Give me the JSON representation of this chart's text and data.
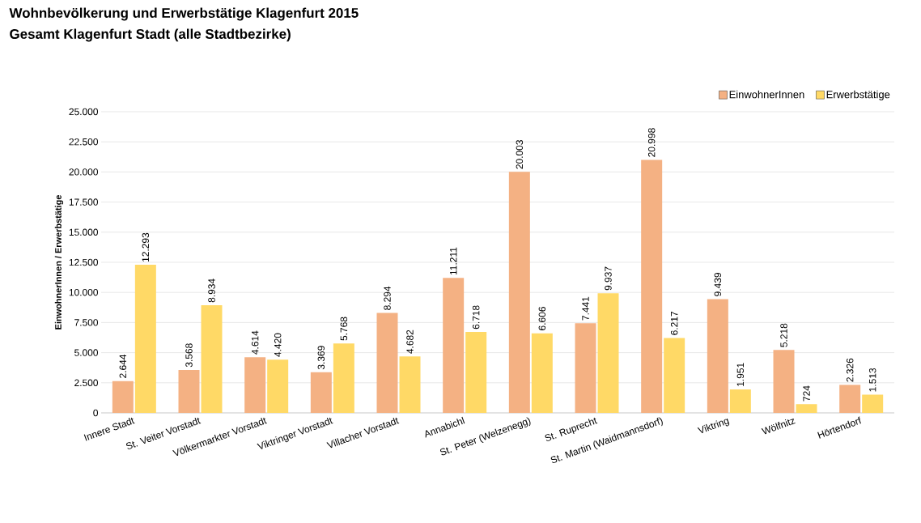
{
  "chart_data": {
    "type": "bar",
    "title": "Wohnbevölkerung und Erwerbstätige Klagenfurt 2015",
    "subtitle": "Gesamt Klagenfurt Stadt (alle Stadtbezirke)",
    "ylabel": "EinwohnerInnen / Erwerbstätige",
    "categories": [
      "Innere Stadt",
      "St. Veiter Vorstadt",
      "Völkermarkter Vorstadt",
      "Viktringer Vorstadt",
      "Villacher Vorstadt",
      "Annabichl",
      "St. Peter (Welzenegg)",
      "St. Ruprecht",
      "St. Martin (Waidmannsdorf)",
      "Viktring",
      "Wölfnitz",
      "Hörtendorf"
    ],
    "series": [
      {
        "name": "EinwohnerInnen",
        "color": "#f4b183",
        "values": [
          2644,
          3568,
          4614,
          3369,
          8294,
          11211,
          20003,
          7441,
          20998,
          9439,
          5218,
          2326
        ],
        "value_labels": [
          "2.644",
          "3.568",
          "4.614",
          "3.369",
          "8.294",
          "11.211",
          "20.003",
          "7.441",
          "20.998",
          "9.439",
          "5.218",
          "2.326"
        ]
      },
      {
        "name": "Erwerbstätige",
        "color": "#ffd966",
        "values": [
          12293,
          8934,
          4420,
          5768,
          4682,
          6718,
          6606,
          9937,
          6217,
          1951,
          724,
          1513
        ],
        "value_labels": [
          "12.293",
          "8.934",
          "4.420",
          "5.768",
          "4.682",
          "6.718",
          "6.606",
          "9.937",
          "6.217",
          "1.951",
          "724",
          "1.513"
        ]
      }
    ],
    "ylim": [
      0,
      25000
    ],
    "yticks": [
      {
        "value": 0,
        "label": "0"
      },
      {
        "value": 2500,
        "label": "2.500"
      },
      {
        "value": 5000,
        "label": "5.000"
      },
      {
        "value": 7500,
        "label": "7.500"
      },
      {
        "value": 10000,
        "label": "10.000"
      },
      {
        "value": 12500,
        "label": "12.500"
      },
      {
        "value": 15000,
        "label": "15.000"
      },
      {
        "value": 17500,
        "label": "17.500"
      },
      {
        "value": 20000,
        "label": "20.000"
      },
      {
        "value": 22500,
        "label": "22.500"
      },
      {
        "value": 25000,
        "label": "25.000"
      }
    ],
    "grid": "y",
    "legend": "top right"
  }
}
